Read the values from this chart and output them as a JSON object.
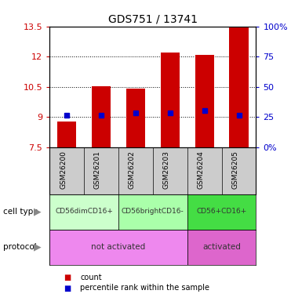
{
  "title": "GDS751 / 13741",
  "samples": [
    "GSM26200",
    "GSM26201",
    "GSM26202",
    "GSM26203",
    "GSM26204",
    "GSM26205"
  ],
  "bar_bottoms": [
    7.5,
    7.5,
    7.5,
    7.5,
    7.5,
    7.5
  ],
  "bar_tops": [
    8.75,
    10.53,
    10.42,
    12.2,
    12.1,
    13.45
  ],
  "percentile_values": [
    9.1,
    9.1,
    9.2,
    9.2,
    9.3,
    9.1
  ],
  "ylim_left": [
    7.5,
    13.5
  ],
  "ylim_right": [
    0,
    100
  ],
  "yticks_left": [
    7.5,
    9.0,
    10.5,
    12.0,
    13.5
  ],
  "yticks_left_labels": [
    "7.5",
    "9",
    "10.5",
    "12",
    "13.5"
  ],
  "yticks_right": [
    0,
    25,
    50,
    75,
    100
  ],
  "yticks_right_labels": [
    "0%",
    "25",
    "50",
    "75",
    "100%"
  ],
  "bar_color": "#cc0000",
  "percentile_color": "#0000cc",
  "cell_types": [
    {
      "label": "CD56dimCD16+",
      "start": 0,
      "end": 2,
      "color": "#ccffcc"
    },
    {
      "label": "CD56brightCD16-",
      "start": 2,
      "end": 4,
      "color": "#aaffaa"
    },
    {
      "label": "CD56+CD16+",
      "start": 4,
      "end": 6,
      "color": "#44dd44"
    }
  ],
  "protocols": [
    {
      "label": "not activated",
      "start": 0,
      "end": 4,
      "color": "#ee88ee"
    },
    {
      "label": "activated",
      "start": 4,
      "end": 6,
      "color": "#dd66cc"
    }
  ],
  "sample_bg_color": "#cccccc",
  "legend_items": [
    {
      "color": "#cc0000",
      "label": "count"
    },
    {
      "color": "#0000cc",
      "label": "percentile rank within the sample"
    }
  ],
  "dotted_lines": [
    9.0,
    10.5,
    12.0
  ],
  "bar_width": 0.55,
  "n_samples": 6,
  "arrow_color": "#888888",
  "left_label_color": "#000000"
}
